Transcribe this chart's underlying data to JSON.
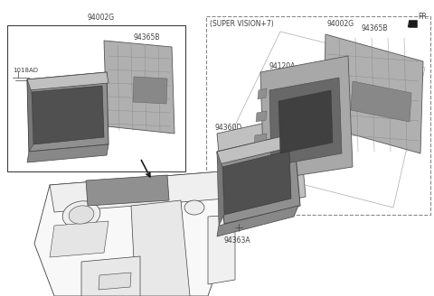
{
  "bg_color": "#ffffff",
  "line_color": "#404040",
  "dashed_color": "#888888",
  "gray_part": "#b8b8b8",
  "dark_part": "#808080",
  "mid_part": "#a0a0a0",
  "label_94002G_L": "94002G",
  "label_94365B_L": "94365B",
  "label_1018AD": "1018AD",
  "label_super": "(SUPER VISION+7)",
  "label_94002G_R": "94002G",
  "label_94365B_R": "94365B",
  "label_94120A": "94120A",
  "label_94360D": "94360D",
  "label_94363A": "94363A",
  "label_FR": "FR.",
  "lfs": 5.5,
  "sfs": 5.0
}
